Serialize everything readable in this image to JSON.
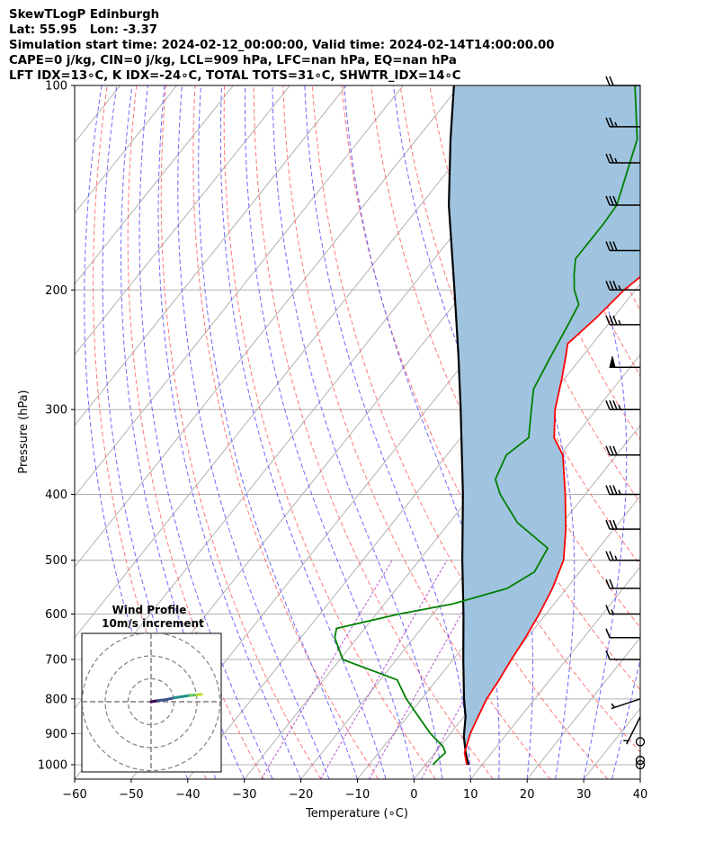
{
  "header": {
    "line1": "SkewTLogP Edinburgh",
    "line2": "Lat: 55.95   Lon: -3.37",
    "line3": "Simulation start time: 2024-02-12_00:00:00, Valid time: 2024-02-14T14:00:00.00",
    "line4": "CAPE=0 j/kg, CIN=0 j/kg, LCL=909 hPa, LFC=nan hPa, EQ=nan hPa",
    "line5": "LFT IDX=13∘C, K IDX=-24∘C, TOTAL TOTS=31∘C, SHWTR_IDX=14∘C"
  },
  "inset": {
    "title": "Wind Profile",
    "subtitle": "10m/s increment"
  },
  "colors": {
    "temperature": "#ff0000",
    "dewpoint": "#008000",
    "parcel": "#000000",
    "shading": "#a0c4e0",
    "dry_adiabat": "#ff6060",
    "moist_adiabat": "#5050ff",
    "mixing_ratio": "#a030c0",
    "isotherm": "#b0b0b0"
  },
  "chart_data": [
    {
      "type": "line",
      "subtype": "skew-t log-p",
      "xlabel": "Temperature (∘C)",
      "ylabel": "Pressure (hPa)",
      "xlim": [
        -60,
        40
      ],
      "ylim": [
        1050,
        100
      ],
      "y_scale": "log",
      "x_ticks": [
        -60,
        -50,
        -40,
        -30,
        -20,
        -10,
        0,
        10,
        20,
        30,
        40
      ],
      "y_ticks": [
        1000,
        900,
        800,
        700,
        600,
        500,
        400,
        300,
        200,
        100
      ],
      "grid": true,
      "series": [
        {
          "key": "temperature",
          "points": [
            [
              1000,
              7.3
            ],
            [
              960,
              5.2
            ],
            [
              900,
              3.5
            ],
            [
              850,
              2.5
            ],
            [
              800,
              1.5
            ],
            [
              750,
              1.0
            ],
            [
              700,
              0.3
            ],
            [
              650,
              -0.3
            ],
            [
              600,
              -1.2
            ],
            [
              550,
              -2.5
            ],
            [
              500,
              -4.5
            ],
            [
              450,
              -8.5
            ],
            [
              400,
              -13.5
            ],
            [
              350,
              -19.5
            ],
            [
              330,
              -23.5
            ],
            [
              300,
              -27.3
            ],
            [
              270,
              -30.5
            ],
            [
              250,
              -33
            ],
            [
              240,
              -34.4
            ],
            [
              220,
              -33
            ],
            [
              200,
              -32
            ],
            [
              175,
              -29
            ],
            [
              150,
              -25.8
            ],
            [
              140,
              -24
            ],
            [
              120,
              -19
            ],
            [
              100,
              -12.5
            ]
          ]
        },
        {
          "key": "dewpoint",
          "points": [
            [
              1000,
              1.3
            ],
            [
              980,
              1.5
            ],
            [
              960,
              1.8
            ],
            [
              940,
              0.5
            ],
            [
              900,
              -3.5
            ],
            [
              850,
              -8
            ],
            [
              800,
              -12.7
            ],
            [
              750,
              -17
            ],
            [
              700,
              -29.5
            ],
            [
              650,
              -34
            ],
            [
              630,
              -35
            ],
            [
              600,
              -26
            ],
            [
              580,
              -18
            ],
            [
              550,
              -10.5
            ],
            [
              520,
              -8
            ],
            [
              480,
              -9
            ],
            [
              440,
              -18
            ],
            [
              400,
              -25
            ],
            [
              380,
              -28
            ],
            [
              350,
              -29.5
            ],
            [
              330,
              -28
            ],
            [
              300,
              -31.5
            ],
            [
              280,
              -34
            ],
            [
              250,
              -35.6
            ],
            [
              225,
              -37
            ],
            [
              210,
              -38
            ],
            [
              200,
              -40.8
            ],
            [
              190,
              -43
            ],
            [
              180,
              -45
            ],
            [
              160,
              -45
            ],
            [
              150,
              -45.3
            ],
            [
              120,
              -51
            ],
            [
              100,
              -59
            ]
          ]
        },
        {
          "key": "parcel",
          "points": [
            [
              1000,
              7.6
            ],
            [
              960,
              5.4
            ],
            [
              909,
              2.8
            ],
            [
              850,
              0.3
            ],
            [
              800,
              -2.5
            ],
            [
              700,
              -8.2
            ],
            [
              600,
              -14.6
            ],
            [
              500,
              -22.4
            ],
            [
              400,
              -31.6
            ],
            [
              300,
              -44
            ],
            [
              250,
              -52
            ],
            [
              200,
              -62
            ],
            [
              150,
              -75
            ],
            [
              120,
              -84
            ],
            [
              100,
              -91
            ]
          ]
        }
      ],
      "wind_barbs": [
        {
          "p": 1000,
          "u": 0.5,
          "v": 0
        },
        {
          "p": 985,
          "u": 0.5,
          "v": 0
        },
        {
          "p": 925,
          "u": 0.5,
          "v": 0
        },
        {
          "p": 850,
          "u": 2,
          "v": 4
        },
        {
          "p": 800,
          "u": 3,
          "v": 1
        },
        {
          "p": 700,
          "u": 10,
          "v": 0
        },
        {
          "p": 650,
          "u": 10,
          "v": 0
        },
        {
          "p": 600,
          "u": 15,
          "v": 0
        },
        {
          "p": 550,
          "u": 20,
          "v": 0
        },
        {
          "p": 500,
          "u": 25,
          "v": 0
        },
        {
          "p": 450,
          "u": 30,
          "v": 0
        },
        {
          "p": 400,
          "u": 35,
          "v": 0
        },
        {
          "p": 350,
          "u": 30,
          "v": 0
        },
        {
          "p": 300,
          "u": 35,
          "v": 0
        },
        {
          "p": 260,
          "u": 50,
          "v": 0
        },
        {
          "p": 225,
          "u": 35,
          "v": 0
        },
        {
          "p": 200,
          "u": 35,
          "v": 0
        },
        {
          "p": 175,
          "u": 30,
          "v": 0
        },
        {
          "p": 150,
          "u": 30,
          "v": 0
        },
        {
          "p": 130,
          "u": 25,
          "v": 0
        },
        {
          "p": 115,
          "u": 25,
          "v": 0
        },
        {
          "p": 100,
          "u": 20,
          "v": 0
        }
      ]
    },
    {
      "type": "line",
      "subtype": "hodograph",
      "title": "Wind Profile",
      "subtitle": "10m/s increment",
      "rings_ms": [
        10,
        20,
        30
      ],
      "points": [
        [
          0,
          0
        ],
        [
          3,
          0.5
        ],
        [
          7,
          1
        ],
        [
          10,
          1.7
        ],
        [
          14,
          2.3
        ],
        [
          17,
          2.8
        ],
        [
          20,
          3.0
        ],
        [
          22,
          3.3
        ]
      ]
    }
  ]
}
